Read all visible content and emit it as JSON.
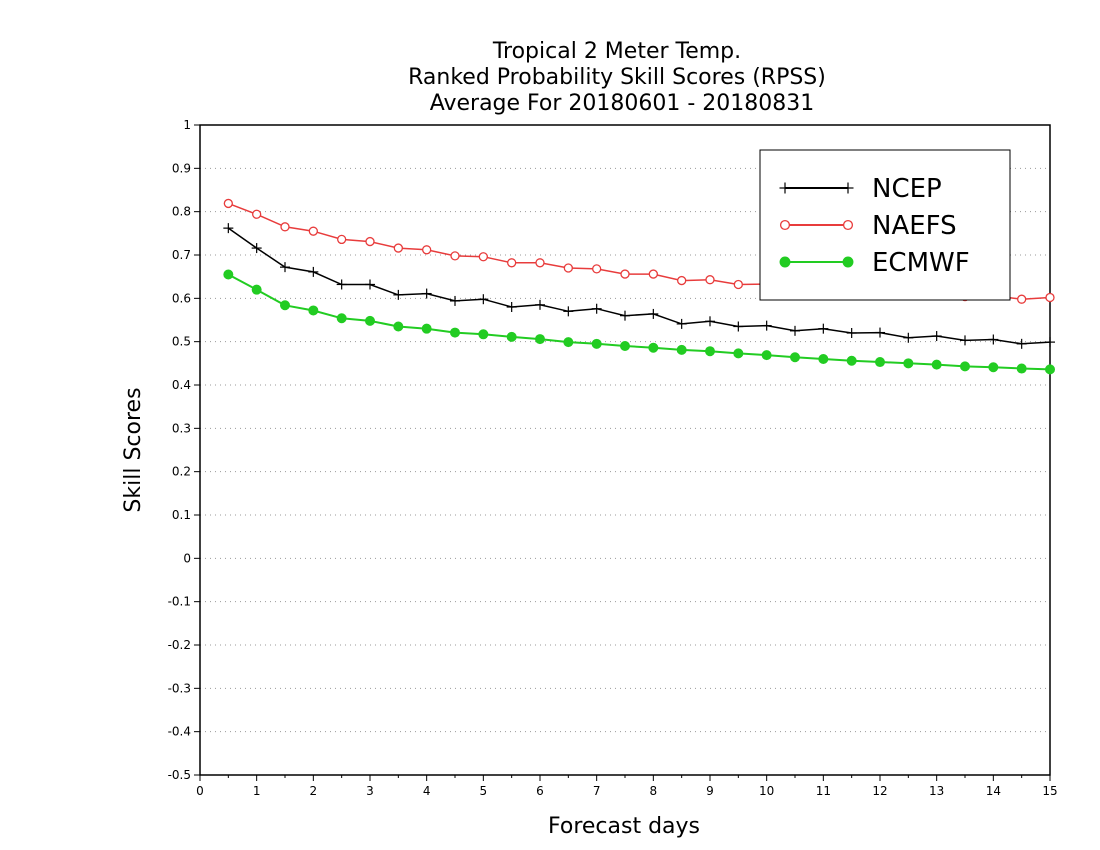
{
  "chart_data": {
    "type": "line",
    "title": [
      "Tropical 2 Meter Temp.",
      "Ranked Probability Skill Scores (RPSS)",
      "Average For 20180601 - 20180831"
    ],
    "xlabel": "Forecast days",
    "ylabel": "Skill Scores",
    "xlim": [
      0,
      15
    ],
    "ylim": [
      -0.5,
      1
    ],
    "xticks": [
      0,
      1,
      2,
      3,
      4,
      5,
      6,
      7,
      8,
      9,
      10,
      11,
      12,
      13,
      14,
      15
    ],
    "xtick_labels": [
      "0",
      "1",
      "2",
      "3",
      "4",
      "5",
      "6",
      "7",
      "8",
      "9",
      "10",
      "11",
      "12",
      "13",
      "14",
      "15"
    ],
    "yticks": [
      -0.5,
      -0.4,
      -0.3,
      -0.2,
      -0.1,
      0,
      0.1,
      0.2,
      0.3,
      0.4,
      0.5,
      0.6,
      0.7,
      0.8,
      0.9,
      1
    ],
    "ytick_labels": [
      "-0.5",
      "-0.4",
      "-0.3",
      "-0.2",
      "-0.1",
      "0",
      "0.1",
      "0.2",
      "0.3",
      "0.4",
      "0.5",
      "0.6",
      "0.7",
      "0.8",
      "0.9",
      "1"
    ],
    "grid": "horizontal dotted",
    "legend_position": "top-right",
    "x": [
      0.5,
      1,
      1.5,
      2,
      2.5,
      3,
      3.5,
      4,
      4.5,
      5,
      5.5,
      6,
      6.5,
      7,
      7.5,
      8,
      8.5,
      9,
      9.5,
      10,
      10.5,
      11,
      11.5,
      12,
      12.5,
      13,
      13.5,
      14,
      14.5,
      15
    ],
    "series": [
      {
        "name": "NCEP",
        "color": "#000000",
        "marker": "plus",
        "values": [
          0.762,
          0.716,
          0.672,
          0.661,
          0.632,
          0.632,
          0.608,
          0.611,
          0.594,
          0.598,
          0.58,
          0.585,
          0.57,
          0.576,
          0.56,
          0.564,
          0.541,
          0.547,
          0.535,
          0.537,
          0.525,
          0.53,
          0.52,
          0.521,
          0.509,
          0.513,
          0.503,
          0.505,
          0.495,
          0.499
        ]
      },
      {
        "name": "NAEFS",
        "color": "#e83c3c",
        "marker": "open-circle",
        "values": [
          0.819,
          0.794,
          0.765,
          0.755,
          0.736,
          0.731,
          0.716,
          0.712,
          0.698,
          0.696,
          0.682,
          0.682,
          0.67,
          0.668,
          0.656,
          0.656,
          0.641,
          0.643,
          0.632,
          0.633,
          0.624,
          0.626,
          0.618,
          0.619,
          0.611,
          0.612,
          0.604,
          0.606,
          0.598,
          0.602
        ]
      },
      {
        "name": "ECMWF",
        "color": "#22cc22",
        "marker": "filled-circle",
        "values": [
          0.655,
          0.62,
          0.584,
          0.572,
          0.554,
          0.548,
          0.535,
          0.53,
          0.521,
          0.517,
          0.511,
          0.506,
          0.499,
          0.495,
          0.49,
          0.486,
          0.481,
          0.478,
          0.473,
          0.469,
          0.464,
          0.46,
          0.456,
          0.453,
          0.45,
          0.447,
          0.443,
          0.441,
          0.438,
          0.436
        ]
      }
    ]
  }
}
